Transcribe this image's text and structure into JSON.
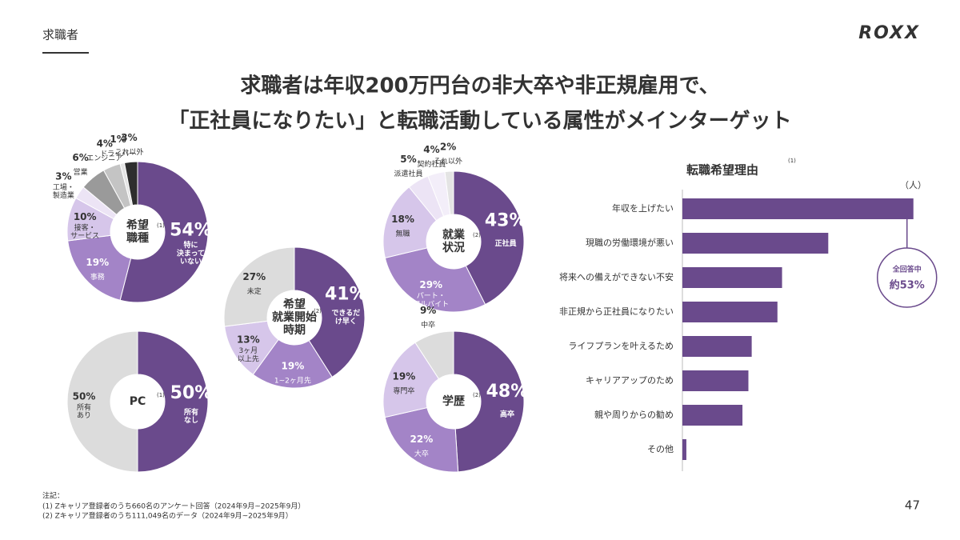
{
  "header": "求職者",
  "logo": "ROXX",
  "title": [
    "求職者は年収200万円台の非大卒や非正規雇用で、",
    "「正社員になりたい」と転職活動している属性がメインターゲット"
  ],
  "chart_data": [
    {
      "type": "pie",
      "center_label": "希望\n職種",
      "note": "(1)",
      "categories": [
        "特に\n決まって\nいない",
        "事務",
        "接客・\nサービス",
        "工場・\n製造業",
        "営業",
        "エンジニア",
        "ドライバー",
        "これ以外"
      ],
      "values": [
        54,
        19,
        10,
        3,
        6,
        4,
        1,
        3
      ],
      "value_labels": [
        "54%",
        "19%",
        "10%",
        "3%",
        "6%",
        "4%",
        "1%",
        "3%"
      ],
      "colors": [
        "#6a4a8c",
        "#a384c7",
        "#d6c6ea",
        "#ece4f5",
        "#9a9a9a",
        "#c4c4c4",
        "#e4e4e4",
        "#2e2e2e"
      ]
    },
    {
      "type": "pie",
      "center_label": "希望\n就業開始\n時期",
      "note": "(2)",
      "categories": [
        "できるだ\nけ早く",
        "1~2ヶ月先",
        "3ヶ月\n以上先",
        "未定"
      ],
      "values": [
        41,
        19,
        13,
        27
      ],
      "value_labels": [
        "41%",
        "19%",
        "13%",
        "27%"
      ],
      "colors": [
        "#6a4a8c",
        "#a384c7",
        "#d6c6ea",
        "#dcdcdc"
      ]
    },
    {
      "type": "pie",
      "center_label": "PC",
      "note": "(1)",
      "categories": [
        "所有\nなし",
        "所有\nあり"
      ],
      "values": [
        50,
        50
      ],
      "value_labels": [
        "50%",
        "50%"
      ],
      "colors": [
        "#6a4a8c",
        "#dcdcdc"
      ]
    },
    {
      "type": "pie",
      "center_label": "就業\n状況",
      "note": "(2)",
      "categories": [
        "正社員",
        "パート・\nアルバイト",
        "無職",
        "派遣社員",
        "契約社員",
        "それ以外"
      ],
      "values": [
        43,
        29,
        18,
        5,
        4,
        2
      ],
      "value_labels": [
        "43%",
        "29%",
        "18%",
        "5%",
        "4%",
        "2%"
      ],
      "colors": [
        "#6a4a8c",
        "#a384c7",
        "#d6c6ea",
        "#ece4f5",
        "#f3eef9",
        "#e4e4e4"
      ]
    },
    {
      "type": "pie",
      "center_label": "学歴",
      "note": "(2)",
      "categories": [
        "高卒",
        "大卒",
        "専門卒",
        "中卒"
      ],
      "values": [
        48,
        22,
        19,
        9
      ],
      "value_labels": [
        "48%",
        "22%",
        "19%",
        "9%"
      ],
      "colors": [
        "#6a4a8c",
        "#a384c7",
        "#d6c6ea",
        "#dcdcdc"
      ]
    },
    {
      "type": "hbar",
      "title": "転職希望理由",
      "note": "(1)",
      "unit": "（人）",
      "categories": [
        "年収を上げたい",
        "現職の労働環境が悪い",
        "将来への備えができない不安",
        "非正規から正社員になりたい",
        "ライフプランを叶えるため",
        "キャリアアップのため",
        "親や周りからの勧め",
        "その他"
      ],
      "values": [
        350,
        221,
        151,
        144,
        105,
        100,
        91,
        6
      ],
      "xlim": [
        0,
        360
      ],
      "color": "#6a4a8c",
      "annotation": [
        "全回答中",
        "約53%"
      ]
    }
  ],
  "notes": [
    "注記：",
    "(1) Zキャリア登録者のうち660名のアンケート回答（2024年9月~2025年9月）",
    "(2) Zキャリア登録者のうち111,049名のデータ（2024年9月~2025年9月）"
  ],
  "page_number": "47"
}
